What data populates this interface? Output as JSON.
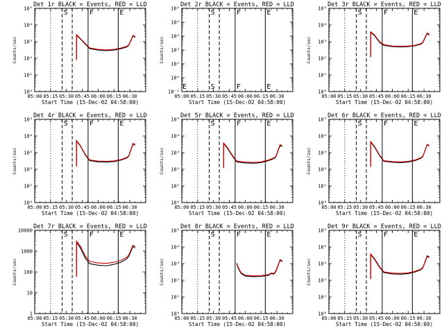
{
  "colors": {
    "background": "#ffffff",
    "axis": "#000000",
    "events_line": "#000000",
    "lld_line": "#cc0000"
  },
  "chart_data": {
    "type": "line",
    "grid": "3x3",
    "shared": {
      "xlabel": "Start Time (15-Dec-02 04:58:00)",
      "ylabel": "Counts/sec",
      "yscale": "log",
      "xlim_minutes": [
        0,
        105
      ],
      "x_tick_labels": [
        "05:00",
        "05:15",
        "05:30",
        "05:45",
        "06:00",
        "06:15",
        "06:30"
      ],
      "x_tick_minutes": [
        0,
        15,
        30,
        45,
        60,
        75,
        90
      ],
      "legend": "in title: BLACK = Events, RED = LLD",
      "vertical_markers": [
        {
          "minute": 15.0,
          "style": "dotted",
          "label": ""
        },
        {
          "minute": 26.0,
          "style": "dashed",
          "label": "S"
        },
        {
          "minute": 35.5,
          "style": "dashed",
          "label": ""
        },
        {
          "minute": 50.5,
          "style": "solid",
          "label": "F"
        },
        {
          "minute": 79.0,
          "style": "solid",
          "label": "E"
        }
      ]
    },
    "panels": [
      {
        "title": "Det 1r BLACK = Events, RED = LLD",
        "ylim": [
          1,
          100000
        ],
        "y_tick_labels": [
          "10⁰",
          "10¹",
          "10²",
          "10³",
          "10⁴",
          "10⁵"
        ],
        "y_tick_values": [
          1,
          10,
          100,
          1000,
          10000,
          100000
        ],
        "has_data": true,
        "events": [
          [
            39.5,
            80
          ],
          [
            39.6,
            2400
          ],
          [
            43,
            1500
          ],
          [
            48,
            700
          ],
          [
            52,
            380
          ],
          [
            60,
            310
          ],
          [
            68,
            290
          ],
          [
            75,
            310
          ],
          [
            82,
            380
          ],
          [
            87,
            480
          ],
          [
            89,
            600
          ],
          [
            93,
            2200
          ],
          [
            95,
            1800
          ]
        ],
        "lld": [
          [
            39.5,
            80
          ],
          [
            39.6,
            2600
          ],
          [
            43,
            1600
          ],
          [
            48,
            760
          ],
          [
            52,
            420
          ],
          [
            60,
            340
          ],
          [
            68,
            320
          ],
          [
            75,
            340
          ],
          [
            82,
            420
          ],
          [
            87,
            520
          ],
          [
            89,
            640
          ],
          [
            93,
            2400
          ],
          [
            95,
            2000
          ]
        ]
      },
      {
        "title": "Det 2r BLACK = Events, RED = LLD",
        "ylim": [
          0.1,
          100000
        ],
        "y_tick_labels": [
          "10⁻¹",
          "10⁰",
          "10¹",
          "10²",
          "10³",
          "10⁴",
          "10⁵"
        ],
        "y_tick_values": [
          0.1,
          1,
          10,
          100,
          1000,
          10000,
          100000
        ],
        "has_data": false,
        "start_label": "E",
        "events": [],
        "lld": []
      },
      {
        "title": "Det 3r BLACK = Events, RED = LLD",
        "ylim": [
          1,
          100000
        ],
        "y_tick_labels": [
          "10⁰",
          "10¹",
          "10²",
          "10³",
          "10⁴",
          "10⁵"
        ],
        "y_tick_values": [
          1,
          10,
          100,
          1000,
          10000,
          100000
        ],
        "has_data": true,
        "events": [
          [
            39.5,
            120
          ],
          [
            39.6,
            3600
          ],
          [
            43,
            2400
          ],
          [
            48,
            900
          ],
          [
            52,
            600
          ],
          [
            60,
            500
          ],
          [
            68,
            480
          ],
          [
            75,
            500
          ],
          [
            82,
            580
          ],
          [
            87,
            700
          ],
          [
            89,
            900
          ],
          [
            93,
            3000
          ],
          [
            95,
            2500
          ]
        ],
        "lld": [
          [
            39.5,
            120
          ],
          [
            39.6,
            3900
          ],
          [
            43,
            2600
          ],
          [
            48,
            980
          ],
          [
            52,
            660
          ],
          [
            60,
            540
          ],
          [
            68,
            520
          ],
          [
            75,
            540
          ],
          [
            82,
            620
          ],
          [
            87,
            760
          ],
          [
            89,
            960
          ],
          [
            93,
            3300
          ],
          [
            95,
            2700
          ]
        ]
      },
      {
        "title": "Det 4r BLACK = Events, RED = LLD",
        "ylim": [
          1,
          100000
        ],
        "y_tick_labels": [
          "10⁰",
          "10¹",
          "10²",
          "10³",
          "10⁴",
          "10⁵"
        ],
        "y_tick_values": [
          1,
          10,
          100,
          1000,
          10000,
          100000
        ],
        "has_data": true,
        "events": [
          [
            39.5,
            150
          ],
          [
            39.6,
            5000
          ],
          [
            43,
            2600
          ],
          [
            48,
            700
          ],
          [
            52,
            330
          ],
          [
            60,
            280
          ],
          [
            68,
            270
          ],
          [
            75,
            290
          ],
          [
            82,
            360
          ],
          [
            87,
            470
          ],
          [
            89,
            600
          ],
          [
            93,
            3300
          ],
          [
            95,
            2800
          ]
        ],
        "lld": [
          [
            39.5,
            150
          ],
          [
            39.6,
            5300
          ],
          [
            43,
            2800
          ],
          [
            48,
            760
          ],
          [
            52,
            360
          ],
          [
            60,
            310
          ],
          [
            68,
            300
          ],
          [
            75,
            320
          ],
          [
            82,
            390
          ],
          [
            87,
            510
          ],
          [
            89,
            650
          ],
          [
            93,
            3600
          ],
          [
            95,
            3000
          ]
        ]
      },
      {
        "title": "Det 5r BLACK = Events, RED = LLD",
        "ylim": [
          1,
          100000
        ],
        "y_tick_labels": [
          "10⁰",
          "10¹",
          "10²",
          "10³",
          "10⁴",
          "10⁵"
        ],
        "y_tick_values": [
          1,
          10,
          100,
          1000,
          10000,
          100000
        ],
        "has_data": true,
        "events": [
          [
            39.5,
            120
          ],
          [
            39.6,
            3500
          ],
          [
            43,
            1900
          ],
          [
            48,
            620
          ],
          [
            52,
            280
          ],
          [
            60,
            240
          ],
          [
            68,
            230
          ],
          [
            75,
            250
          ],
          [
            82,
            330
          ],
          [
            87,
            440
          ],
          [
            89,
            560
          ],
          [
            93,
            2700
          ],
          [
            95,
            2300
          ]
        ],
        "lld": [
          [
            39.5,
            120
          ],
          [
            39.6,
            3800
          ],
          [
            43,
            2100
          ],
          [
            48,
            680
          ],
          [
            52,
            310
          ],
          [
            60,
            270
          ],
          [
            68,
            260
          ],
          [
            75,
            280
          ],
          [
            82,
            360
          ],
          [
            87,
            480
          ],
          [
            89,
            600
          ],
          [
            93,
            3000
          ],
          [
            95,
            2500
          ]
        ]
      },
      {
        "title": "Det 6r BLACK = Events, RED = LLD",
        "ylim": [
          1,
          100000
        ],
        "y_tick_labels": [
          "10⁰",
          "10¹",
          "10²",
          "10³",
          "10⁴",
          "10⁵"
        ],
        "y_tick_values": [
          1,
          10,
          100,
          1000,
          10000,
          100000
        ],
        "has_data": true,
        "events": [
          [
            39.5,
            140
          ],
          [
            39.6,
            4300
          ],
          [
            43,
            2300
          ],
          [
            48,
            650
          ],
          [
            52,
            300
          ],
          [
            60,
            260
          ],
          [
            68,
            250
          ],
          [
            75,
            270
          ],
          [
            82,
            340
          ],
          [
            87,
            450
          ],
          [
            89,
            580
          ],
          [
            93,
            3000
          ],
          [
            95,
            2500
          ]
        ],
        "lld": [
          [
            39.5,
            140
          ],
          [
            39.6,
            4600
          ],
          [
            43,
            2500
          ],
          [
            48,
            710
          ],
          [
            52,
            330
          ],
          [
            60,
            290
          ],
          [
            68,
            280
          ],
          [
            75,
            300
          ],
          [
            82,
            370
          ],
          [
            87,
            490
          ],
          [
            89,
            620
          ],
          [
            93,
            3200
          ],
          [
            95,
            2700
          ]
        ]
      },
      {
        "title": "Det 7r BLACK = Events, RED = LLD",
        "ylim": [
          1,
          10000
        ],
        "y_tick_labels": [
          "1",
          "10",
          "100",
          "1000",
          "10000"
        ],
        "y_tick_values": [
          1,
          10,
          100,
          1000,
          10000
        ],
        "has_data": true,
        "events": [
          [
            39.5,
            60
          ],
          [
            39.6,
            2600
          ],
          [
            43,
            1500
          ],
          [
            48,
            450
          ],
          [
            52,
            250
          ],
          [
            60,
            210
          ],
          [
            68,
            200
          ],
          [
            75,
            230
          ],
          [
            82,
            300
          ],
          [
            87,
            420
          ],
          [
            89,
            560
          ],
          [
            93,
            1700
          ],
          [
            95,
            1400
          ]
        ],
        "lld": [
          [
            39.5,
            60
          ],
          [
            39.6,
            3000
          ],
          [
            43,
            1800
          ],
          [
            48,
            560
          ],
          [
            52,
            320
          ],
          [
            60,
            270
          ],
          [
            68,
            260
          ],
          [
            75,
            290
          ],
          [
            82,
            370
          ],
          [
            87,
            500
          ],
          [
            89,
            650
          ],
          [
            93,
            1950
          ],
          [
            95,
            1650
          ]
        ]
      },
      {
        "title": "Det 8r BLACK = Events, RED = LLD",
        "ylim": [
          1,
          100000
        ],
        "y_tick_labels": [
          "10⁰",
          "10¹",
          "10²",
          "10³",
          "10⁴",
          "10⁵"
        ],
        "y_tick_values": [
          1,
          10,
          100,
          1000,
          10000,
          100000
        ],
        "has_data": true,
        "events": [
          [
            52.0,
            1000
          ],
          [
            53,
            600
          ],
          [
            56,
            260
          ],
          [
            60,
            180
          ],
          [
            68,
            165
          ],
          [
            75,
            170
          ],
          [
            82,
            200
          ],
          [
            85,
            260
          ],
          [
            87,
            230
          ],
          [
            89,
            330
          ],
          [
            93,
            1600
          ],
          [
            95,
            1300
          ]
        ],
        "lld": [
          [
            52.0,
            1100
          ],
          [
            53,
            660
          ],
          [
            56,
            290
          ],
          [
            60,
            200
          ],
          [
            68,
            185
          ],
          [
            75,
            190
          ],
          [
            82,
            220
          ],
          [
            85,
            280
          ],
          [
            87,
            250
          ],
          [
            89,
            360
          ],
          [
            93,
            1750
          ],
          [
            95,
            1450
          ]
        ]
      },
      {
        "title": "Det 9r BLACK = Events, RED = LLD",
        "ylim": [
          1,
          100000
        ],
        "y_tick_labels": [
          "10⁰",
          "10¹",
          "10²",
          "10³",
          "10⁴",
          "10⁵"
        ],
        "y_tick_values": [
          1,
          10,
          100,
          1000,
          10000,
          100000
        ],
        "has_data": true,
        "events": [
          [
            39.5,
            120
          ],
          [
            39.6,
            3500
          ],
          [
            43,
            1900
          ],
          [
            48,
            600
          ],
          [
            52,
            290
          ],
          [
            60,
            240
          ],
          [
            68,
            230
          ],
          [
            75,
            250
          ],
          [
            82,
            320
          ],
          [
            87,
            430
          ],
          [
            89,
            550
          ],
          [
            93,
            2700
          ],
          [
            95,
            2300
          ]
        ],
        "lld": [
          [
            39.5,
            120
          ],
          [
            39.6,
            3800
          ],
          [
            43,
            2100
          ],
          [
            48,
            660
          ],
          [
            52,
            320
          ],
          [
            60,
            270
          ],
          [
            68,
            260
          ],
          [
            75,
            280
          ],
          [
            82,
            350
          ],
          [
            87,
            470
          ],
          [
            89,
            600
          ],
          [
            93,
            3000
          ],
          [
            95,
            2500
          ]
        ]
      }
    ]
  }
}
